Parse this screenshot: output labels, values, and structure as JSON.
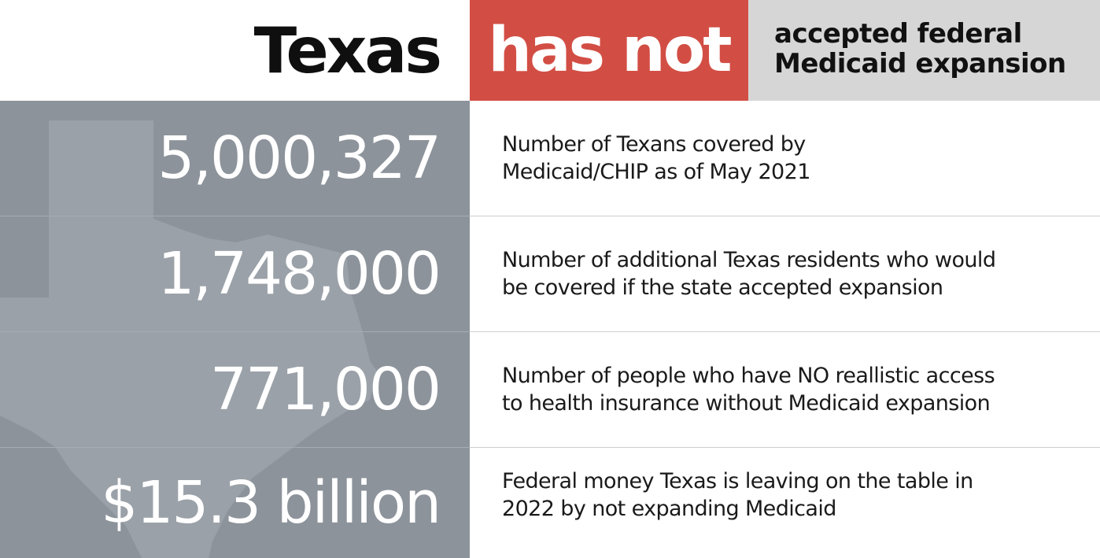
{
  "header": {
    "state": "Texas",
    "status": "has not",
    "subtitle_line1": "accepted federal",
    "subtitle_line2": "Medicaid expansion"
  },
  "rows": [
    {
      "value": "5,000,327",
      "line1": "Number of Texans covered by",
      "line2": "Medicaid/CHIP as of May 2021"
    },
    {
      "value": "1,748,000",
      "line1": "Number of additional Texas residents who would",
      "line2": "be covered if the state accepted expansion"
    },
    {
      "value": "771,000",
      "line1": "Number of people who have NO reallistic access",
      "line2": "to health insurance without Medicaid expansion"
    },
    {
      "value": "$15.3 billion",
      "line1": "Federal money Texas is leaving on the table in",
      "line2": "2022 by not expanding Medicaid"
    }
  ],
  "colors": {
    "status_red": "#d24e44",
    "subtitle_gray": "#d6d6d6",
    "panel_gray": "#8d939b",
    "map_gray": "#9ba1a8"
  },
  "icons": {
    "background_map": "texas-map-silhouette"
  }
}
